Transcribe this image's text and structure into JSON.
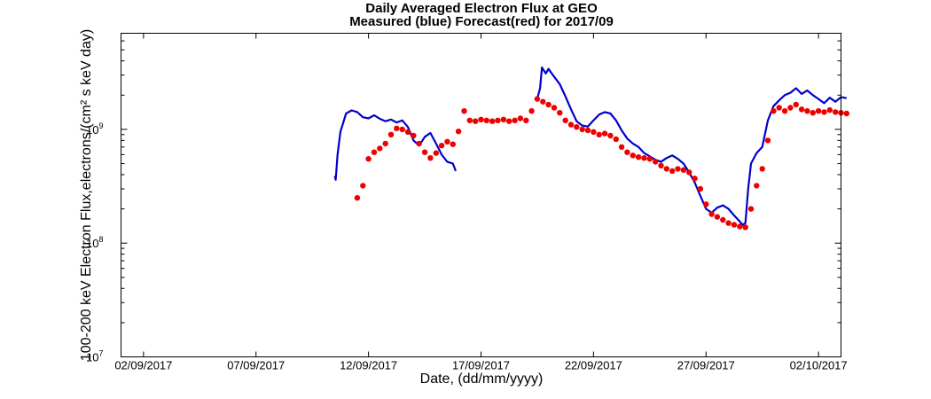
{
  "chart_data": {
    "type": "line",
    "title": "Daily Averaged Electron Flux at GEO",
    "subtitle": "Measured (blue) Forecast(red) for 2017/09",
    "xlabel": "Date, (dd/mm/yyyy)",
    "ylabel": "100-200 keV Electron Flux,electrons/(cm² s keV day)",
    "x_scale": "date",
    "y_scale": "log",
    "xlim": [
      "2017-09-01T00:00",
      "2017-10-03T00:00"
    ],
    "ylim": [
      10000000.0,
      7000000000.0
    ],
    "x_ticks": [
      {
        "date": "2017-09-02",
        "label": "02/09/2017"
      },
      {
        "date": "2017-09-07",
        "label": "07/09/2017"
      },
      {
        "date": "2017-09-12",
        "label": "12/09/2017"
      },
      {
        "date": "2017-09-17",
        "label": "17/09/2017"
      },
      {
        "date": "2017-09-22",
        "label": "22/09/2017"
      },
      {
        "date": "2017-09-27",
        "label": "27/09/2017"
      },
      {
        "date": "2017-10-02",
        "label": "02/10/2017"
      }
    ],
    "y_ticks": [
      {
        "value": 10000000.0,
        "base": "10",
        "exp": "7"
      },
      {
        "value": 100000000.0,
        "base": "10",
        "exp": "8"
      },
      {
        "value": 1000000000.0,
        "base": "10",
        "exp": "9"
      }
    ],
    "grid": false,
    "series": [
      {
        "name": "Measured",
        "style": "line",
        "color": "#0000cc",
        "segments": [
          [
            [
              "2017-09-10T12:00",
              390000000.0
            ],
            [
              "2017-09-10T13:00",
              360000000.0
            ],
            [
              "2017-09-10T15:00",
              600000000.0
            ],
            [
              "2017-09-10T18:00",
              950000000.0
            ],
            [
              "2017-09-11T00:00",
              1380000000.0
            ],
            [
              "2017-09-11T06:00",
              1470000000.0
            ],
            [
              "2017-09-11T12:00",
              1420000000.0
            ],
            [
              "2017-09-11T18:00",
              1280000000.0
            ],
            [
              "2017-09-12T00:00",
              1250000000.0
            ],
            [
              "2017-09-12T06:00",
              1330000000.0
            ],
            [
              "2017-09-12T12:00",
              1240000000.0
            ],
            [
              "2017-09-12T18:00",
              1180000000.0
            ],
            [
              "2017-09-13T00:00",
              1220000000.0
            ],
            [
              "2017-09-13T06:00",
              1150000000.0
            ],
            [
              "2017-09-13T12:00",
              1200000000.0
            ],
            [
              "2017-09-13T18:00",
              1050000000.0
            ],
            [
              "2017-09-14T00:00",
              800000000.0
            ],
            [
              "2017-09-14T06:00",
              720000000.0
            ],
            [
              "2017-09-14T12:00",
              860000000.0
            ],
            [
              "2017-09-14T18:00",
              930000000.0
            ],
            [
              "2017-09-15T00:00",
              750000000.0
            ],
            [
              "2017-09-15T06:00",
              600000000.0
            ],
            [
              "2017-09-15T12:00",
              520000000.0
            ],
            [
              "2017-09-15T18:00",
              500000000.0
            ],
            [
              "2017-09-15T21:00",
              430000000.0
            ]
          ],
          [
            [
              "2017-09-19T12:00",
              1850000000.0
            ],
            [
              "2017-09-19T15:00",
              2300000000.0
            ],
            [
              "2017-09-19T17:00",
              3500000000.0
            ],
            [
              "2017-09-19T21:00",
              3100000000.0
            ],
            [
              "2017-09-20T00:00",
              3400000000.0
            ],
            [
              "2017-09-20T06:00",
              2900000000.0
            ],
            [
              "2017-09-20T12:00",
              2500000000.0
            ],
            [
              "2017-09-20T18:00",
              1950000000.0
            ],
            [
              "2017-09-21T00:00",
              1500000000.0
            ],
            [
              "2017-09-21T06:00",
              1180000000.0
            ],
            [
              "2017-09-21T12:00",
              1080000000.0
            ],
            [
              "2017-09-21T18:00",
              1060000000.0
            ],
            [
              "2017-09-22T00:00",
              1200000000.0
            ],
            [
              "2017-09-22T06:00",
              1350000000.0
            ],
            [
              "2017-09-22T12:00",
              1420000000.0
            ],
            [
              "2017-09-22T18:00",
              1380000000.0
            ],
            [
              "2017-09-23T00:00",
              1200000000.0
            ],
            [
              "2017-09-23T06:00",
              980000000.0
            ],
            [
              "2017-09-23T12:00",
              830000000.0
            ],
            [
              "2017-09-23T18:00",
              750000000.0
            ],
            [
              "2017-09-24T00:00",
              700000000.0
            ],
            [
              "2017-09-24T06:00",
              620000000.0
            ],
            [
              "2017-09-24T12:00",
              580000000.0
            ],
            [
              "2017-09-24T18:00",
              540000000.0
            ],
            [
              "2017-09-25T00:00",
              520000000.0
            ],
            [
              "2017-09-25T06:00",
              560000000.0
            ],
            [
              "2017-09-25T12:00",
              590000000.0
            ],
            [
              "2017-09-25T18:00",
              550000000.0
            ],
            [
              "2017-09-26T00:00",
              500000000.0
            ],
            [
              "2017-09-26T06:00",
              420000000.0
            ],
            [
              "2017-09-26T12:00",
              340000000.0
            ],
            [
              "2017-09-26T18:00",
              260000000.0
            ],
            [
              "2017-09-27T00:00",
              200000000.0
            ],
            [
              "2017-09-27T06:00",
              185000000.0
            ],
            [
              "2017-09-27T12:00",
              205000000.0
            ],
            [
              "2017-09-27T18:00",
              215000000.0
            ],
            [
              "2017-09-28T00:00",
              200000000.0
            ],
            [
              "2017-09-28T06:00",
              175000000.0
            ],
            [
              "2017-09-28T12:00",
              155000000.0
            ],
            [
              "2017-09-28T15:00",
              145000000.0
            ],
            [
              "2017-09-28T18:00",
              150000000.0
            ],
            [
              "2017-09-28T21:00",
              300000000.0
            ],
            [
              "2017-09-29T00:00",
              500000000.0
            ],
            [
              "2017-09-29T06:00",
              620000000.0
            ],
            [
              "2017-09-29T12:00",
              700000000.0
            ],
            [
              "2017-09-29T18:00",
              1200000000.0
            ],
            [
              "2017-09-30T00:00",
              1600000000.0
            ],
            [
              "2017-09-30T06:00",
              1800000000.0
            ],
            [
              "2017-09-30T12:00",
              2000000000.0
            ],
            [
              "2017-09-30T18:00",
              2100000000.0
            ],
            [
              "2017-10-01T00:00",
              2300000000.0
            ],
            [
              "2017-10-01T06:00",
              2050000000.0
            ],
            [
              "2017-10-01T12:00",
              2200000000.0
            ],
            [
              "2017-10-01T18:00",
              2000000000.0
            ],
            [
              "2017-10-02T00:00",
              1850000000.0
            ],
            [
              "2017-10-02T06:00",
              1700000000.0
            ],
            [
              "2017-10-02T12:00",
              1900000000.0
            ],
            [
              "2017-10-02T18:00",
              1750000000.0
            ],
            [
              "2017-10-03T00:00",
              1920000000.0
            ],
            [
              "2017-10-03T06:00",
              1880000000.0
            ]
          ]
        ]
      },
      {
        "name": "Forecast",
        "style": "markers",
        "color": "#ee0000",
        "points": [
          [
            "2017-09-11T12:00",
            250000000.0
          ],
          [
            "2017-09-11T18:00",
            320000000.0
          ],
          [
            "2017-09-12T00:00",
            550000000.0
          ],
          [
            "2017-09-12T06:00",
            630000000.0
          ],
          [
            "2017-09-12T12:00",
            680000000.0
          ],
          [
            "2017-09-12T18:00",
            750000000.0
          ],
          [
            "2017-09-13T00:00",
            900000000.0
          ],
          [
            "2017-09-13T06:00",
            1020000000.0
          ],
          [
            "2017-09-13T12:00",
            1000000000.0
          ],
          [
            "2017-09-13T18:00",
            950000000.0
          ],
          [
            "2017-09-14T00:00",
            880000000.0
          ],
          [
            "2017-09-14T06:00",
            750000000.0
          ],
          [
            "2017-09-14T12:00",
            630000000.0
          ],
          [
            "2017-09-14T18:00",
            560000000.0
          ],
          [
            "2017-09-15T00:00",
            620000000.0
          ],
          [
            "2017-09-15T06:00",
            720000000.0
          ],
          [
            "2017-09-15T12:00",
            780000000.0
          ],
          [
            "2017-09-15T18:00",
            740000000.0
          ],
          [
            "2017-09-16T00:00",
            960000000.0
          ],
          [
            "2017-09-16T06:00",
            1450000000.0
          ],
          [
            "2017-09-16T12:00",
            1200000000.0
          ],
          [
            "2017-09-16T18:00",
            1180000000.0
          ],
          [
            "2017-09-17T00:00",
            1220000000.0
          ],
          [
            "2017-09-17T06:00",
            1200000000.0
          ],
          [
            "2017-09-17T12:00",
            1180000000.0
          ],
          [
            "2017-09-17T18:00",
            1200000000.0
          ],
          [
            "2017-09-18T00:00",
            1220000000.0
          ],
          [
            "2017-09-18T06:00",
            1180000000.0
          ],
          [
            "2017-09-18T12:00",
            1200000000.0
          ],
          [
            "2017-09-18T18:00",
            1250000000.0
          ],
          [
            "2017-09-19T00:00",
            1200000000.0
          ],
          [
            "2017-09-19T06:00",
            1450000000.0
          ],
          [
            "2017-09-19T12:00",
            1850000000.0
          ],
          [
            "2017-09-19T18:00",
            1750000000.0
          ],
          [
            "2017-09-20T00:00",
            1650000000.0
          ],
          [
            "2017-09-20T06:00",
            1550000000.0
          ],
          [
            "2017-09-20T12:00",
            1400000000.0
          ],
          [
            "2017-09-20T18:00",
            1200000000.0
          ],
          [
            "2017-09-21T00:00",
            1100000000.0
          ],
          [
            "2017-09-21T06:00",
            1050000000.0
          ],
          [
            "2017-09-21T12:00",
            1000000000.0
          ],
          [
            "2017-09-21T18:00",
            980000000.0
          ],
          [
            "2017-09-22T00:00",
            950000000.0
          ],
          [
            "2017-09-22T06:00",
            900000000.0
          ],
          [
            "2017-09-22T12:00",
            920000000.0
          ],
          [
            "2017-09-22T18:00",
            880000000.0
          ],
          [
            "2017-09-23T00:00",
            820000000.0
          ],
          [
            "2017-09-23T06:00",
            700000000.0
          ],
          [
            "2017-09-23T12:00",
            630000000.0
          ],
          [
            "2017-09-23T18:00",
            590000000.0
          ],
          [
            "2017-09-24T00:00",
            570000000.0
          ],
          [
            "2017-09-24T06:00",
            560000000.0
          ],
          [
            "2017-09-24T12:00",
            550000000.0
          ],
          [
            "2017-09-24T18:00",
            520000000.0
          ],
          [
            "2017-09-25T00:00",
            480000000.0
          ],
          [
            "2017-09-25T06:00",
            450000000.0
          ],
          [
            "2017-09-25T12:00",
            430000000.0
          ],
          [
            "2017-09-25T18:00",
            450000000.0
          ],
          [
            "2017-09-26T00:00",
            440000000.0
          ],
          [
            "2017-09-26T06:00",
            420000000.0
          ],
          [
            "2017-09-26T12:00",
            370000000.0
          ],
          [
            "2017-09-26T18:00",
            300000000.0
          ],
          [
            "2017-09-27T00:00",
            220000000.0
          ],
          [
            "2017-09-27T06:00",
            180000000.0
          ],
          [
            "2017-09-27T12:00",
            170000000.0
          ],
          [
            "2017-09-27T18:00",
            160000000.0
          ],
          [
            "2017-09-28T00:00",
            150000000.0
          ],
          [
            "2017-09-28T06:00",
            145000000.0
          ],
          [
            "2017-09-28T12:00",
            140000000.0
          ],
          [
            "2017-09-28T18:00",
            138000000.0
          ],
          [
            "2017-09-29T00:00",
            200000000.0
          ],
          [
            "2017-09-29T06:00",
            320000000.0
          ],
          [
            "2017-09-29T12:00",
            450000000.0
          ],
          [
            "2017-09-29T18:00",
            800000000.0
          ],
          [
            "2017-09-30T00:00",
            1450000000.0
          ],
          [
            "2017-09-30T06:00",
            1550000000.0
          ],
          [
            "2017-09-30T12:00",
            1450000000.0
          ],
          [
            "2017-09-30T18:00",
            1550000000.0
          ],
          [
            "2017-10-01T00:00",
            1650000000.0
          ],
          [
            "2017-10-01T06:00",
            1500000000.0
          ],
          [
            "2017-10-01T12:00",
            1450000000.0
          ],
          [
            "2017-10-01T18:00",
            1400000000.0
          ],
          [
            "2017-10-02T00:00",
            1450000000.0
          ],
          [
            "2017-10-02T06:00",
            1420000000.0
          ],
          [
            "2017-10-02T12:00",
            1480000000.0
          ],
          [
            "2017-10-02T18:00",
            1420000000.0
          ],
          [
            "2017-10-03T00:00",
            1400000000.0
          ],
          [
            "2017-10-03T06:00",
            1380000000.0
          ]
        ]
      }
    ]
  }
}
